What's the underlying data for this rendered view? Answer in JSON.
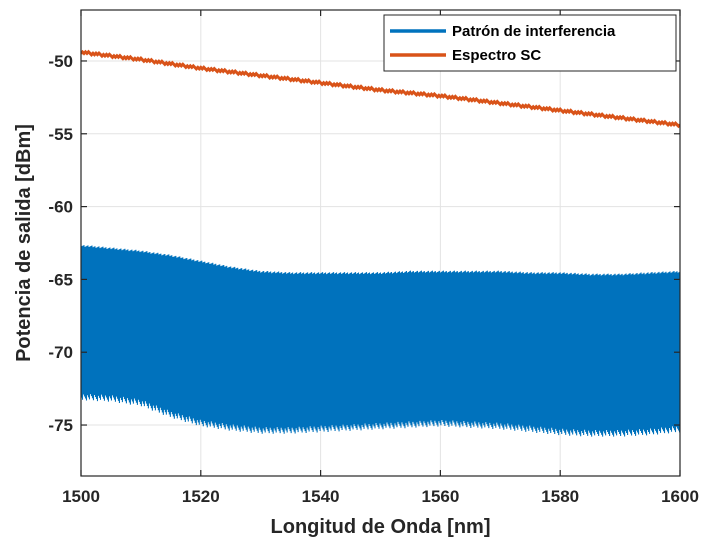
{
  "chart_data": {
    "type": "line",
    "xlabel": "Longitud de Onda [nm]",
    "ylabel": "Potencia de salida [dBm]",
    "xlim": [
      1500,
      1600
    ],
    "ylim": [
      -78.5,
      -46.5
    ],
    "xticks": [
      1500,
      1520,
      1540,
      1560,
      1580,
      1600
    ],
    "yticks": [
      -50,
      -55,
      -60,
      -65,
      -70,
      -75
    ],
    "grid": true,
    "legend_position": "top-right",
    "series": [
      {
        "name": "Patrón de interferencia",
        "color": "#0072BD",
        "style": "dense-oscillation",
        "x": [
          1500,
          1505,
          1510,
          1515,
          1520,
          1525,
          1530,
          1535,
          1540,
          1545,
          1550,
          1555,
          1560,
          1565,
          1570,
          1575,
          1580,
          1585,
          1590,
          1595,
          1600
        ],
        "upper": [
          -62.6,
          -62.8,
          -63.0,
          -63.3,
          -63.7,
          -64.1,
          -64.4,
          -64.5,
          -64.5,
          -64.5,
          -64.5,
          -64.4,
          -64.4,
          -64.4,
          -64.4,
          -64.5,
          -64.5,
          -64.6,
          -64.6,
          -64.5,
          -64.4
        ],
        "lower": [
          -73.3,
          -73.4,
          -73.7,
          -74.5,
          -75.1,
          -75.4,
          -75.6,
          -75.6,
          -75.5,
          -75.4,
          -75.3,
          -75.2,
          -75.1,
          -75.2,
          -75.3,
          -75.5,
          -75.7,
          -75.8,
          -75.8,
          -75.7,
          -75.5
        ]
      },
      {
        "name": "Espectro SC",
        "color": "#D95319",
        "x": [
          1500,
          1510,
          1520,
          1530,
          1540,
          1550,
          1560,
          1570,
          1580,
          1590,
          1600
        ],
        "values": [
          -49.4,
          -49.9,
          -50.5,
          -51.0,
          -51.5,
          -52.0,
          -52.4,
          -52.9,
          -53.4,
          -53.9,
          -54.4
        ]
      }
    ]
  }
}
